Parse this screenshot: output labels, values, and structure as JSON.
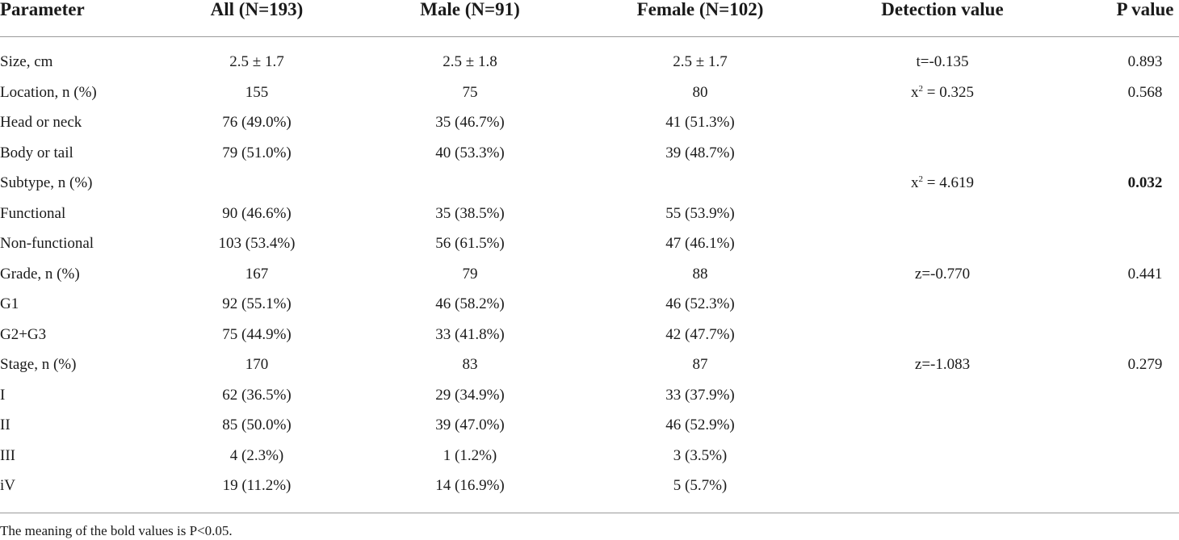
{
  "headers": [
    "Parameter",
    "All (N=193)",
    "Male (N=91)",
    "Female (N=102)",
    "Detection value",
    "P value"
  ],
  "rows": [
    [
      "Size, cm",
      "2.5 ± 1.7",
      "2.5 ± 1.8",
      "2.5 ± 1.7",
      "t=-0.135",
      "0.893"
    ],
    [
      "Location, n (%)",
      "155",
      "75",
      "80",
      "x² = 0.325",
      "0.568"
    ],
    [
      "Head or neck",
      "76 (49.0%)",
      "35 (46.7%)",
      "41 (51.3%)",
      "",
      ""
    ],
    [
      "Body or tail",
      "79 (51.0%)",
      "40 (53.3%)",
      "39 (48.7%)",
      "",
      ""
    ],
    [
      "Subtype, n (%)",
      "",
      "",
      "",
      "x² = 4.619",
      "0.032"
    ],
    [
      "Functional",
      "90 (46.6%)",
      "35 (38.5%)",
      "55 (53.9%)",
      "",
      ""
    ],
    [
      "Non-functional",
      "103 (53.4%)",
      "56 (61.5%)",
      "47 (46.1%)",
      "",
      ""
    ],
    [
      "Grade, n (%)",
      "167",
      "79",
      "88",
      "z=-0.770",
      "0.441"
    ],
    [
      "G1",
      "92 (55.1%)",
      "46 (58.2%)",
      "46 (52.3%)",
      "",
      ""
    ],
    [
      "G2+G3",
      "75 (44.9%)",
      "33 (41.8%)",
      "42 (47.7%)",
      "",
      ""
    ],
    [
      "Stage, n (%)",
      "170",
      "83",
      "87",
      "z=-1.083",
      "0.279"
    ],
    [
      "I",
      "62 (36.5%)",
      "29 (34.9%)",
      "33 (37.9%)",
      "",
      ""
    ],
    [
      "II",
      "85 (50.0%)",
      "39 (47.0%)",
      "46 (52.9%)",
      "",
      ""
    ],
    [
      "III",
      "4 (2.3%)",
      "1 (1.2%)",
      "3 (3.5%)",
      "",
      ""
    ],
    [
      "iV",
      "19 (11.2%)",
      "14 (16.9%)",
      "5 (5.7%)",
      "",
      ""
    ]
  ],
  "bold_cells": [
    "4.5"
  ],
  "footnote": "The meaning of the bold values is P<0.05."
}
